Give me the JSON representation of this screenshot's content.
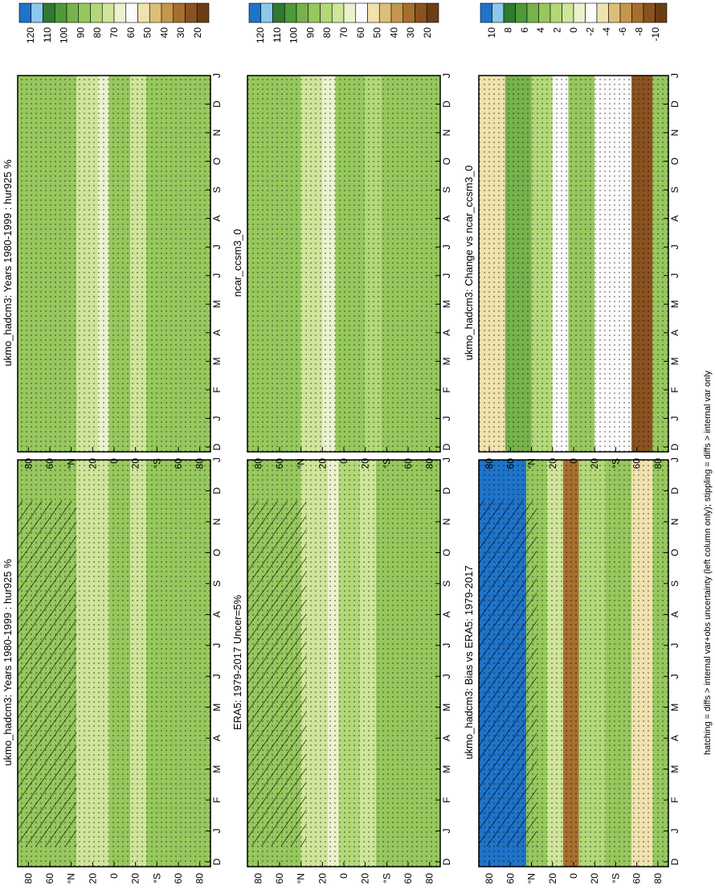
{
  "footnote": "hatching = diffs > internal var+obs uncertainty (left column only); stippling = diffs > internal var only",
  "chart_data": [
    {
      "type": "heatmap",
      "title": "ukmo_hadcm3: Years 1980-1999 : hur925 %",
      "x_categories": [
        "D",
        "J",
        "F",
        "M",
        "A",
        "M",
        "J",
        "J",
        "A",
        "S",
        "O",
        "N",
        "D",
        "J"
      ],
      "y_ticks": [
        "80",
        "60",
        "°N",
        "20",
        "0",
        "20",
        "°S",
        "60",
        "80"
      ],
      "colorbar_ticks": [
        "120",
        "110",
        "100",
        "90",
        "80",
        "70",
        "60",
        "50",
        "40",
        "30",
        "20"
      ],
      "colorbar_range": [
        20,
        120
      ],
      "bands": [
        {
          "lat_from": 90,
          "lat_to": 35,
          "value": 88
        },
        {
          "lat_from": 35,
          "lat_to": 15,
          "value": 72
        },
        {
          "lat_from": 15,
          "lat_to": 5,
          "value": 70
        },
        {
          "lat_from": 5,
          "lat_to": -15,
          "value": 84
        },
        {
          "lat_from": -15,
          "lat_to": -30,
          "value": 70
        },
        {
          "lat_from": -30,
          "lat_to": -90,
          "value": 86
        }
      ],
      "hatching": true,
      "stippling": true
    },
    {
      "type": "heatmap",
      "title": "ukmo_hadcm3: Years 1980-1999 : hur925 %",
      "x_categories": [
        "D",
        "J",
        "F",
        "M",
        "A",
        "M",
        "J",
        "J",
        "A",
        "S",
        "O",
        "N",
        "D",
        "J"
      ],
      "y_ticks": [
        "80",
        "60",
        "°N",
        "20",
        "0",
        "20",
        "°S",
        "60",
        "80"
      ],
      "colorbar_ticks": [
        "120",
        "110",
        "100",
        "90",
        "80",
        "70",
        "60",
        "50",
        "40",
        "30",
        "20"
      ],
      "colorbar_range": [
        20,
        120
      ],
      "bands": [
        {
          "lat_from": 90,
          "lat_to": 35,
          "value": 87
        },
        {
          "lat_from": 35,
          "lat_to": 15,
          "value": 72
        },
        {
          "lat_from": 15,
          "lat_to": 5,
          "value": 68
        },
        {
          "lat_from": 5,
          "lat_to": -15,
          "value": 84
        },
        {
          "lat_from": -15,
          "lat_to": -30,
          "value": 71
        },
        {
          "lat_from": -30,
          "lat_to": -90,
          "value": 86
        }
      ],
      "hatching": false,
      "stippling": true
    },
    {
      "type": "heatmap",
      "title": "ERA5: 1979-2017 Uncer=5%",
      "x_categories": [
        "D",
        "J",
        "F",
        "M",
        "A",
        "M",
        "J",
        "J",
        "A",
        "S",
        "O",
        "N",
        "D",
        "J"
      ],
      "y_ticks": [
        "80",
        "60",
        "°N",
        "20",
        "0",
        "20",
        "°S",
        "60",
        "80"
      ],
      "colorbar_ticks": [
        "120",
        "110",
        "100",
        "90",
        "80",
        "70",
        "60",
        "50",
        "40",
        "30",
        "20"
      ],
      "colorbar_range": [
        20,
        120
      ],
      "bands": [
        {
          "lat_from": 90,
          "lat_to": 40,
          "value": 88
        },
        {
          "lat_from": 40,
          "lat_to": 15,
          "value": 70
        },
        {
          "lat_from": 15,
          "lat_to": 5,
          "value": 64
        },
        {
          "lat_from": 5,
          "lat_to": -15,
          "value": 82
        },
        {
          "lat_from": -15,
          "lat_to": -30,
          "value": 72
        },
        {
          "lat_from": -30,
          "lat_to": -90,
          "value": 85
        }
      ],
      "hatching": true,
      "stippling": true
    },
    {
      "type": "heatmap",
      "title": "ncar_ccsm3_0",
      "x_categories": [
        "D",
        "J",
        "F",
        "M",
        "A",
        "M",
        "J",
        "J",
        "A",
        "S",
        "O",
        "N",
        "D",
        "J"
      ],
      "y_ticks": [
        "80",
        "60",
        "°N",
        "20",
        "0",
        "20",
        "°S",
        "60",
        "80"
      ],
      "colorbar_ticks": [
        "120",
        "110",
        "100",
        "90",
        "80",
        "70",
        "60",
        "50",
        "40",
        "30",
        "20"
      ],
      "colorbar_range": [
        20,
        120
      ],
      "bands": [
        {
          "lat_from": 90,
          "lat_to": 40,
          "value": 86
        },
        {
          "lat_from": 40,
          "lat_to": 20,
          "value": 72
        },
        {
          "lat_from": 20,
          "lat_to": 8,
          "value": 65
        },
        {
          "lat_from": 8,
          "lat_to": -20,
          "value": 84
        },
        {
          "lat_from": -20,
          "lat_to": -35,
          "value": 78
        },
        {
          "lat_from": -35,
          "lat_to": -90,
          "value": 86
        }
      ],
      "hatching": false,
      "stippling": true
    },
    {
      "type": "heatmap",
      "title": "ukmo_hadcm3: Bias vs ERA5: 1979-2017",
      "x_categories": [
        "D",
        "J",
        "F",
        "M",
        "A",
        "M",
        "J",
        "J",
        "A",
        "S",
        "O",
        "N",
        "D",
        "J"
      ],
      "y_ticks": [
        "80",
        "60",
        "°N",
        "20",
        "0",
        "20",
        "°S",
        "60",
        "80"
      ],
      "colorbar_ticks": [
        "10",
        "8",
        "6",
        "4",
        "2",
        "0",
        "-2",
        "-4",
        "-6",
        "-8",
        "-10"
      ],
      "colorbar_range": [
        -11,
        11
      ],
      "bands": [
        {
          "lat_from": 90,
          "lat_to": 45,
          "value": 10
        },
        {
          "lat_from": 45,
          "lat_to": 25,
          "value": 3
        },
        {
          "lat_from": 25,
          "lat_to": 10,
          "value": 1
        },
        {
          "lat_from": 10,
          "lat_to": -5,
          "value": -7
        },
        {
          "lat_from": -5,
          "lat_to": -30,
          "value": 2
        },
        {
          "lat_from": -30,
          "lat_to": -55,
          "value": 3
        },
        {
          "lat_from": -55,
          "lat_to": -75,
          "value": -4
        },
        {
          "lat_from": -75,
          "lat_to": -90,
          "value": 4
        }
      ],
      "hatching": true,
      "stippling": true
    },
    {
      "type": "heatmap",
      "title": "ukmo_hadcm3: Change vs ncar_ccsm3_0",
      "x_categories": [
        "D",
        "J",
        "F",
        "M",
        "A",
        "M",
        "J",
        "J",
        "A",
        "S",
        "O",
        "N",
        "D",
        "J"
      ],
      "y_ticks": [
        "80",
        "60",
        "°N",
        "20",
        "0",
        "20",
        "°S",
        "60",
        "80"
      ],
      "colorbar_ticks": [
        "10",
        "8",
        "6",
        "4",
        "2",
        "0",
        "-2",
        "-4",
        "-6",
        "-8",
        "-10"
      ],
      "colorbar_range": [
        -11,
        11
      ],
      "bands": [
        {
          "lat_from": 90,
          "lat_to": 65,
          "value": -3
        },
        {
          "lat_from": 65,
          "lat_to": 40,
          "value": 5
        },
        {
          "lat_from": 40,
          "lat_to": 20,
          "value": 2
        },
        {
          "lat_from": 20,
          "lat_to": 5,
          "value": -2
        },
        {
          "lat_from": 5,
          "lat_to": -20,
          "value": 3
        },
        {
          "lat_from": -20,
          "lat_to": -55,
          "value": -2
        },
        {
          "lat_from": -55,
          "lat_to": -75,
          "value": -9
        },
        {
          "lat_from": -75,
          "lat_to": -90,
          "value": 3
        }
      ],
      "hatching": false,
      "stippling": true
    }
  ]
}
